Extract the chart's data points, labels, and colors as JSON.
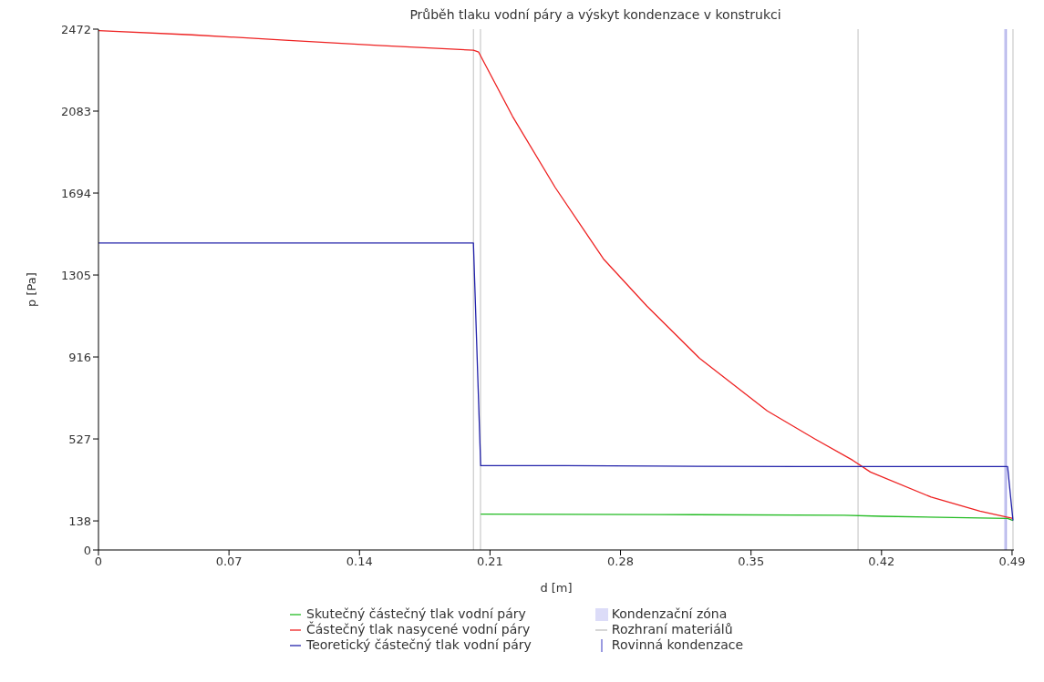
{
  "chart_data": {
    "type": "line",
    "title": "Průběh tlaku vodní páry a výskyt kondenzace v konstrukci",
    "xlabel": "d [m]",
    "ylabel": "p [Pa]",
    "xlim": [
      0,
      0.491
    ],
    "xticks": [
      0,
      0.07,
      0.14,
      0.21,
      0.28,
      0.35,
      0.42,
      0.49
    ],
    "ylim": [
      0,
      2472
    ],
    "yticks": [
      0,
      138,
      527,
      916,
      1305,
      1694,
      2083,
      2472
    ],
    "grid": false,
    "legend": "bottom",
    "marker": "none",
    "line_style": "solid",
    "series": [
      {
        "name": "Skutečný částečný tlak vodní páry",
        "color": "#22bb22",
        "x": [
          0.205,
          0.3,
          0.4,
          0.42,
          0.4876,
          0.4905
        ],
        "values": [
          170,
          168,
          165,
          160,
          150,
          140
        ]
      },
      {
        "name": "Částečný tlak nasycené vodní páry",
        "color": "#ee2222",
        "x": [
          0,
          0.05,
          0.1,
          0.15,
          0.2011,
          0.2039,
          0.2221,
          0.245,
          0.2708,
          0.2942,
          0.3224,
          0.3587,
          0.3844,
          0.4045,
          0.414,
          0.4466,
          0.4728,
          0.4905
        ],
        "values": [
          2465,
          2445,
          2420,
          2395,
          2372,
          2363,
          2058,
          1720,
          1382,
          1157,
          910,
          660,
          526,
          426,
          370,
          251,
          184,
          150
        ]
      },
      {
        "name": "Teoretický částečný tlak vodní páry",
        "color": "#2222aa",
        "x": [
          0,
          0.2011,
          0.205,
          0.25,
          0.3,
          0.376,
          0.4876,
          0.4905
        ],
        "values": [
          1457,
          1457,
          400,
          400,
          398,
          396,
          396,
          140
        ]
      }
    ],
    "bands": [
      {
        "axis": "x",
        "from": 0.4856,
        "to": 0.4874,
        "label": "Kondenzační zóna",
        "color": "#dcdcf8"
      }
    ],
    "ref_lines": [
      {
        "axis": "x",
        "value": 0.2011,
        "label": "Rozhraní materiálů",
        "color": "#c0c0c0"
      },
      {
        "axis": "x",
        "value": 0.2049,
        "color": "#c0c0c0"
      },
      {
        "axis": "x",
        "value": 0.4074,
        "color": "#c0c0c0"
      },
      {
        "axis": "x",
        "value": 0.4905,
        "color": "#c0c0c0"
      },
      {
        "axis": "x",
        "value": 0.4867,
        "label": "Rovinná kondenzace",
        "color": "#9a9ae0"
      }
    ]
  }
}
